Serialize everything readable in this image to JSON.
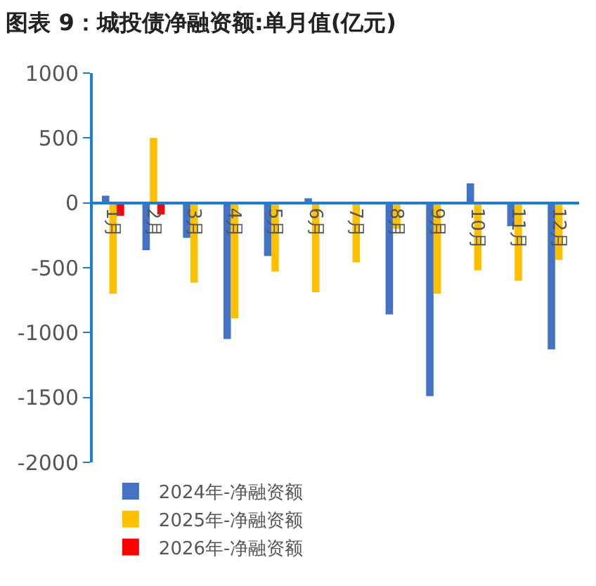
{
  "chart_data": {
    "type": "bar",
    "title": "图表 9：城投债净融资额:单月值(亿元)",
    "categories": [
      "1月",
      "2月",
      "3月",
      "4月",
      "5月",
      "6月",
      "7月",
      "8月",
      "9月",
      "10月",
      "11月",
      "12月"
    ],
    "series": [
      {
        "name": "2024年-净融资额",
        "color": "#4472c4",
        "values": [
          55,
          -365,
          -270,
          -1050,
          -410,
          35,
          null,
          -860,
          -1490,
          150,
          -180,
          -1130
        ]
      },
      {
        "name": "2025年-净融资额",
        "color": "#ffc000",
        "values": [
          -700,
          500,
          -615,
          -890,
          -530,
          -690,
          -460,
          -200,
          -700,
          -520,
          -600,
          -440
        ]
      },
      {
        "name": "2026年-净融资额",
        "color": "#ff0000",
        "values": [
          -100,
          -90,
          null,
          null,
          null,
          null,
          null,
          null,
          null,
          null,
          null,
          null
        ]
      }
    ],
    "ylim": [
      -2000,
      1000
    ],
    "yticks": [
      -2000,
      -1500,
      -1000,
      -500,
      0,
      500,
      1000
    ],
    "grid": false,
    "legend": "bottom"
  }
}
